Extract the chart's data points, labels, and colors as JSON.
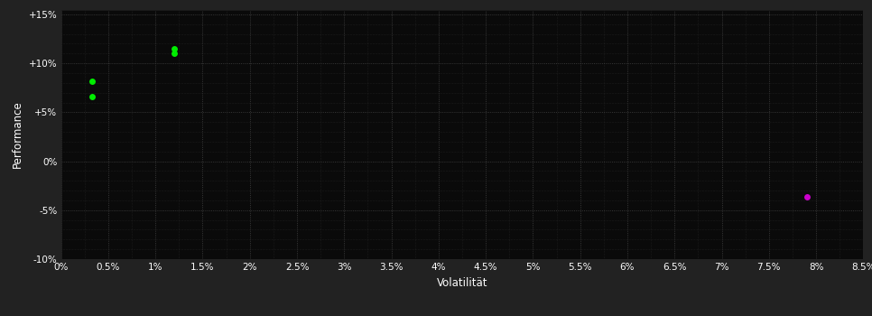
{
  "title": "",
  "xlabel": "Volatilität",
  "ylabel": "Performance",
  "background_color": "#222222",
  "plot_bg_color": "#0a0a0a",
  "grid_color": "#444444",
  "minor_grid_color": "#2a2a2a",
  "text_color": "#ffffff",
  "xlim": [
    0.0,
    0.085
  ],
  "ylim": [
    -0.1,
    0.155
  ],
  "xticks": [
    0.0,
    0.005,
    0.01,
    0.015,
    0.02,
    0.025,
    0.03,
    0.035,
    0.04,
    0.045,
    0.05,
    0.055,
    0.06,
    0.065,
    0.07,
    0.075,
    0.08,
    0.085
  ],
  "xtick_labels": [
    "0%",
    "0.5%",
    "1%",
    "1.5%",
    "2%",
    "2.5%",
    "3%",
    "3.5%",
    "4%",
    "4.5%",
    "5%",
    "5.5%",
    "6%",
    "6.5%",
    "7%",
    "7.5%",
    "8%",
    "8.5%"
  ],
  "yticks": [
    -0.1,
    -0.05,
    0.0,
    0.05,
    0.1,
    0.15
  ],
  "ytick_labels": [
    "-10%",
    "-5%",
    "0%",
    "+5%",
    "+10%",
    "+15%"
  ],
  "green_points": [
    [
      0.0033,
      0.082
    ],
    [
      0.0033,
      0.066
    ],
    [
      0.012,
      0.115
    ],
    [
      0.012,
      0.11
    ]
  ],
  "magenta_points": [
    [
      0.079,
      -0.036
    ]
  ],
  "green_color": "#00ee00",
  "magenta_color": "#cc00cc",
  "marker_size": 5,
  "font_size_ticks": 7.5,
  "font_size_label": 8.5
}
